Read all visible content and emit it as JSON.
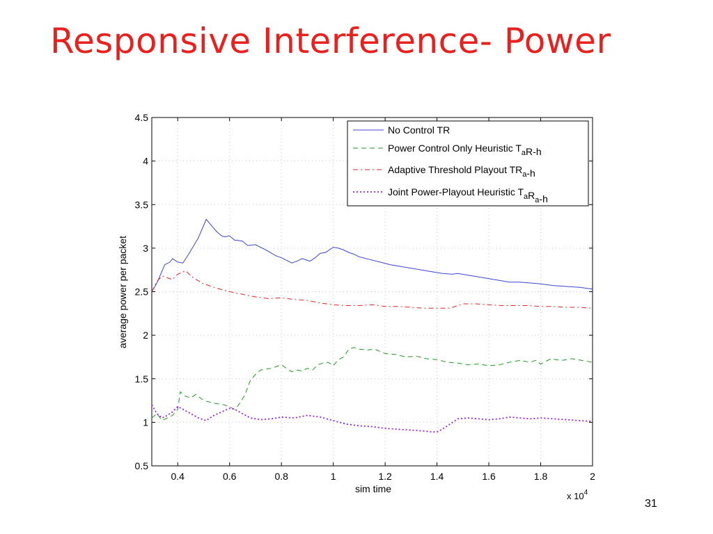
{
  "slide": {
    "title": "Responsive Interference- Power",
    "page_number": "31"
  },
  "chart_data": {
    "type": "line",
    "title": "",
    "xlabel": "sim time",
    "ylabel": "average power per packet",
    "x_multiplier_label": "x 10",
    "x_multiplier_exponent": "4",
    "xlim": [
      0.3,
      2.0
    ],
    "ylim": [
      0.5,
      4.5
    ],
    "x_ticks": [
      0.4,
      0.6,
      0.8,
      1.0,
      1.2,
      1.4,
      1.6,
      1.8,
      2.0
    ],
    "x_tick_labels": [
      "0.4",
      "0.6",
      "0.8",
      "1",
      "1.2",
      "1.4",
      "1.6",
      "1.8",
      "2"
    ],
    "y_ticks": [
      0.5,
      1,
      1.5,
      2,
      2.5,
      3,
      3.5,
      4,
      4.5
    ],
    "y_tick_labels": [
      "0.5",
      "1",
      "1.5",
      "2",
      "2.5",
      "3",
      "3.5",
      "4",
      "4.5"
    ],
    "grid": true,
    "legend_position": "top-right",
    "series": [
      {
        "name": "No Control TR",
        "legend_parts": [
          {
            "t": "No Control TR"
          }
        ],
        "color": "#3b45d6",
        "style": "solid",
        "x": [
          0.3,
          0.32,
          0.35,
          0.37,
          0.38,
          0.4,
          0.42,
          0.44,
          0.46,
          0.48,
          0.51,
          0.53,
          0.55,
          0.57,
          0.58,
          0.6,
          0.62,
          0.63,
          0.65,
          0.67,
          0.7,
          0.74,
          0.78,
          0.8,
          0.82,
          0.84,
          0.86,
          0.88,
          0.9,
          0.91,
          0.93,
          0.95,
          0.97,
          1.0,
          1.02,
          1.04,
          1.06,
          1.08,
          1.1,
          1.14,
          1.18,
          1.22,
          1.26,
          1.3,
          1.34,
          1.38,
          1.42,
          1.46,
          1.48,
          1.52,
          1.56,
          1.6,
          1.64,
          1.68,
          1.72,
          1.76,
          1.8,
          1.85,
          1.9,
          1.95,
          2.0
        ],
        "y": [
          2.5,
          2.6,
          2.81,
          2.84,
          2.88,
          2.84,
          2.83,
          2.92,
          3.02,
          3.12,
          3.33,
          3.26,
          3.19,
          3.14,
          3.13,
          3.14,
          3.09,
          3.09,
          3.08,
          3.03,
          3.04,
          2.98,
          2.91,
          2.89,
          2.86,
          2.83,
          2.85,
          2.88,
          2.86,
          2.85,
          2.89,
          2.94,
          2.95,
          3.01,
          3.0,
          2.98,
          2.95,
          2.93,
          2.9,
          2.87,
          2.84,
          2.81,
          2.79,
          2.77,
          2.75,
          2.73,
          2.71,
          2.7,
          2.71,
          2.69,
          2.67,
          2.65,
          2.63,
          2.61,
          2.61,
          2.6,
          2.59,
          2.57,
          2.56,
          2.55,
          2.53
        ]
      },
      {
        "name": "Power Control Only Heuristic TaR-h",
        "legend_parts": [
          {
            "t": "Power Control Only Heuristic T"
          },
          {
            "t": "a",
            "sub": true
          },
          {
            "t": "R-h"
          }
        ],
        "color": "#1e9a1e",
        "style": "dashed",
        "x": [
          0.3,
          0.32,
          0.34,
          0.36,
          0.38,
          0.4,
          0.41,
          0.43,
          0.45,
          0.47,
          0.5,
          0.54,
          0.58,
          0.62,
          0.64,
          0.66,
          0.68,
          0.7,
          0.72,
          0.76,
          0.8,
          0.82,
          0.84,
          0.86,
          0.88,
          0.9,
          0.92,
          0.94,
          0.96,
          0.98,
          1.0,
          1.02,
          1.04,
          1.06,
          1.08,
          1.1,
          1.13,
          1.16,
          1.2,
          1.24,
          1.28,
          1.32,
          1.36,
          1.4,
          1.44,
          1.48,
          1.52,
          1.56,
          1.6,
          1.64,
          1.68,
          1.72,
          1.76,
          1.78,
          1.8,
          1.84,
          1.88,
          1.92,
          1.96,
          2.0
        ],
        "y": [
          1.05,
          1.1,
          1.02,
          1.05,
          1.08,
          1.15,
          1.35,
          1.3,
          1.28,
          1.32,
          1.25,
          1.22,
          1.2,
          1.15,
          1.22,
          1.32,
          1.48,
          1.55,
          1.6,
          1.62,
          1.66,
          1.62,
          1.58,
          1.6,
          1.59,
          1.62,
          1.6,
          1.66,
          1.68,
          1.69,
          1.65,
          1.72,
          1.75,
          1.84,
          1.86,
          1.84,
          1.83,
          1.84,
          1.79,
          1.78,
          1.75,
          1.76,
          1.73,
          1.72,
          1.69,
          1.68,
          1.66,
          1.67,
          1.65,
          1.66,
          1.69,
          1.71,
          1.69,
          1.71,
          1.67,
          1.73,
          1.71,
          1.73,
          1.71,
          1.69
        ]
      },
      {
        "name": "Adaptive Threshold Playout TRa-h",
        "legend_parts": [
          {
            "t": "Adaptive Threshold Playout TR"
          },
          {
            "t": "a",
            "sub": true
          },
          {
            "t": "-h"
          }
        ],
        "color": "#e32222",
        "style": "dashdot",
        "x": [
          0.3,
          0.32,
          0.34,
          0.36,
          0.38,
          0.4,
          0.43,
          0.46,
          0.5,
          0.55,
          0.6,
          0.65,
          0.7,
          0.75,
          0.8,
          0.85,
          0.9,
          0.95,
          1.0,
          1.05,
          1.1,
          1.15,
          1.2,
          1.25,
          1.3,
          1.35,
          1.4,
          1.45,
          1.5,
          1.55,
          1.6,
          1.65,
          1.7,
          1.75,
          1.8,
          1.85,
          1.9,
          1.95,
          2.0
        ],
        "y": [
          2.5,
          2.62,
          2.68,
          2.66,
          2.64,
          2.7,
          2.74,
          2.66,
          2.59,
          2.54,
          2.5,
          2.47,
          2.44,
          2.42,
          2.43,
          2.41,
          2.4,
          2.37,
          2.35,
          2.34,
          2.34,
          2.35,
          2.33,
          2.33,
          2.32,
          2.31,
          2.31,
          2.31,
          2.36,
          2.36,
          2.35,
          2.34,
          2.34,
          2.34,
          2.33,
          2.33,
          2.32,
          2.32,
          2.31
        ]
      },
      {
        "name": "Joint Power-Playout Heuristic TaRa-h",
        "legend_parts": [
          {
            "t": "Joint Power-Playout Heuristic T"
          },
          {
            "t": "a",
            "sub": true
          },
          {
            "t": "R"
          },
          {
            "t": "a",
            "sub": true
          },
          {
            "t": "-h"
          }
        ],
        "color": "#9a1fe0",
        "style": "dotted",
        "x": [
          0.3,
          0.32,
          0.34,
          0.36,
          0.38,
          0.4,
          0.42,
          0.45,
          0.48,
          0.51,
          0.54,
          0.57,
          0.6,
          0.62,
          0.65,
          0.68,
          0.72,
          0.76,
          0.8,
          0.85,
          0.9,
          0.95,
          1.0,
          1.05,
          1.1,
          1.15,
          1.2,
          1.25,
          1.3,
          1.35,
          1.38,
          1.4,
          1.42,
          1.44,
          1.46,
          1.48,
          1.52,
          1.56,
          1.6,
          1.64,
          1.68,
          1.72,
          1.76,
          1.8,
          1.85,
          1.9,
          1.95,
          2.0
        ],
        "y": [
          1.2,
          1.1,
          1.05,
          1.08,
          1.12,
          1.18,
          1.15,
          1.1,
          1.05,
          1.02,
          1.08,
          1.12,
          1.16,
          1.15,
          1.1,
          1.05,
          1.03,
          1.04,
          1.06,
          1.05,
          1.08,
          1.06,
          1.02,
          0.98,
          0.96,
          0.95,
          0.93,
          0.92,
          0.91,
          0.9,
          0.89,
          0.89,
          0.92,
          0.96,
          1.0,
          1.04,
          1.05,
          1.04,
          1.03,
          1.04,
          1.06,
          1.05,
          1.04,
          1.05,
          1.04,
          1.03,
          1.02,
          1.01
        ]
      }
    ]
  }
}
